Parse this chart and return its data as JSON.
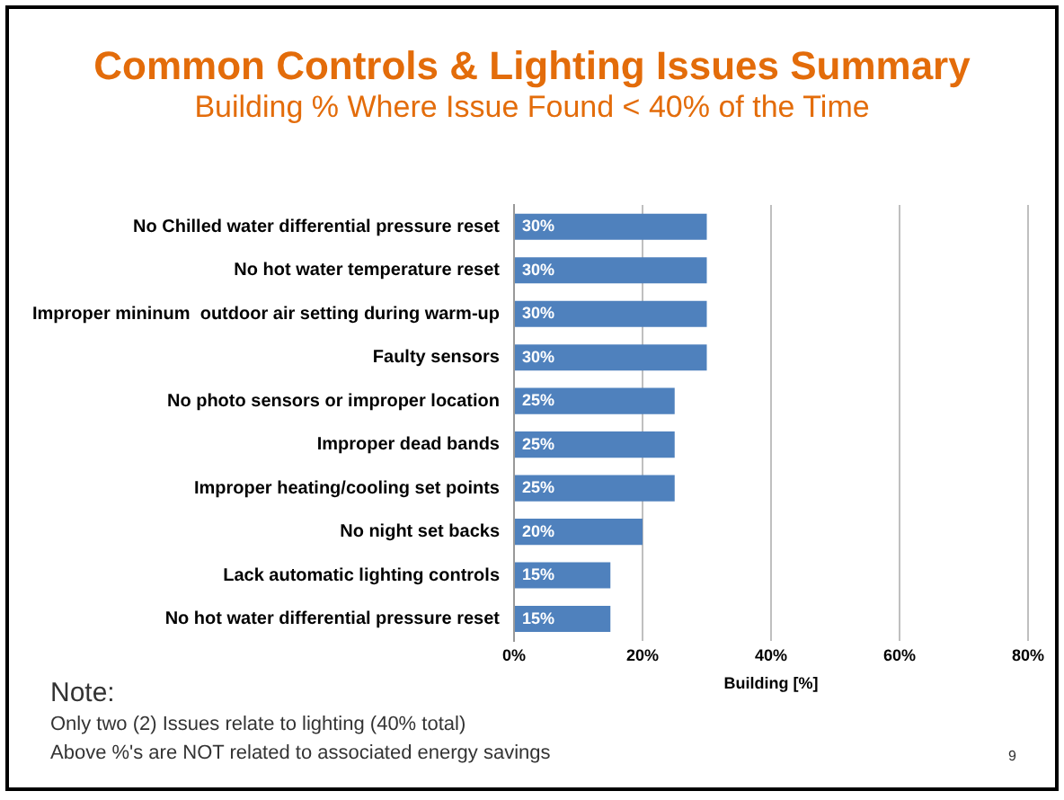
{
  "chart_data": {
    "type": "bar",
    "orientation": "horizontal",
    "title": "Common Controls & Lighting Issues Summary",
    "subtitle": "Building % Where Issue Found < 40% of the Time",
    "xlabel": "Building [%]",
    "categories": [
      "No Chilled water differential pressure reset",
      "No hot water temperature reset",
      "Improper mininum  outdoor air setting during warm-up",
      "Faulty sensors",
      "No photo sensors or improper location",
      "Improper dead bands",
      "Improper heating/cooling set points",
      "No night set backs",
      "Lack automatic lighting controls",
      "No hot water differential pressure reset"
    ],
    "values": [
      30,
      30,
      30,
      30,
      25,
      25,
      25,
      20,
      15,
      15
    ],
    "value_labels": [
      "30%",
      "30%",
      "30%",
      "30%",
      "25%",
      "25%",
      "25%",
      "20%",
      "15%",
      "15%"
    ],
    "color": "#4f81bd",
    "xlim": [
      0,
      80
    ],
    "xticks": [
      {
        "value": 0,
        "label": "0%"
      },
      {
        "value": 20,
        "label": "20%"
      },
      {
        "value": 40,
        "label": "40%"
      },
      {
        "value": 60,
        "label": "60%"
      },
      {
        "value": 80,
        "label": "80%"
      }
    ],
    "grid": "x",
    "legend": false,
    "annotations": [
      "Note:",
      "Only two (2) Issues relate to lighting (40% total)",
      "Above %'s are NOT related to associated energy savings",
      "9"
    ]
  }
}
